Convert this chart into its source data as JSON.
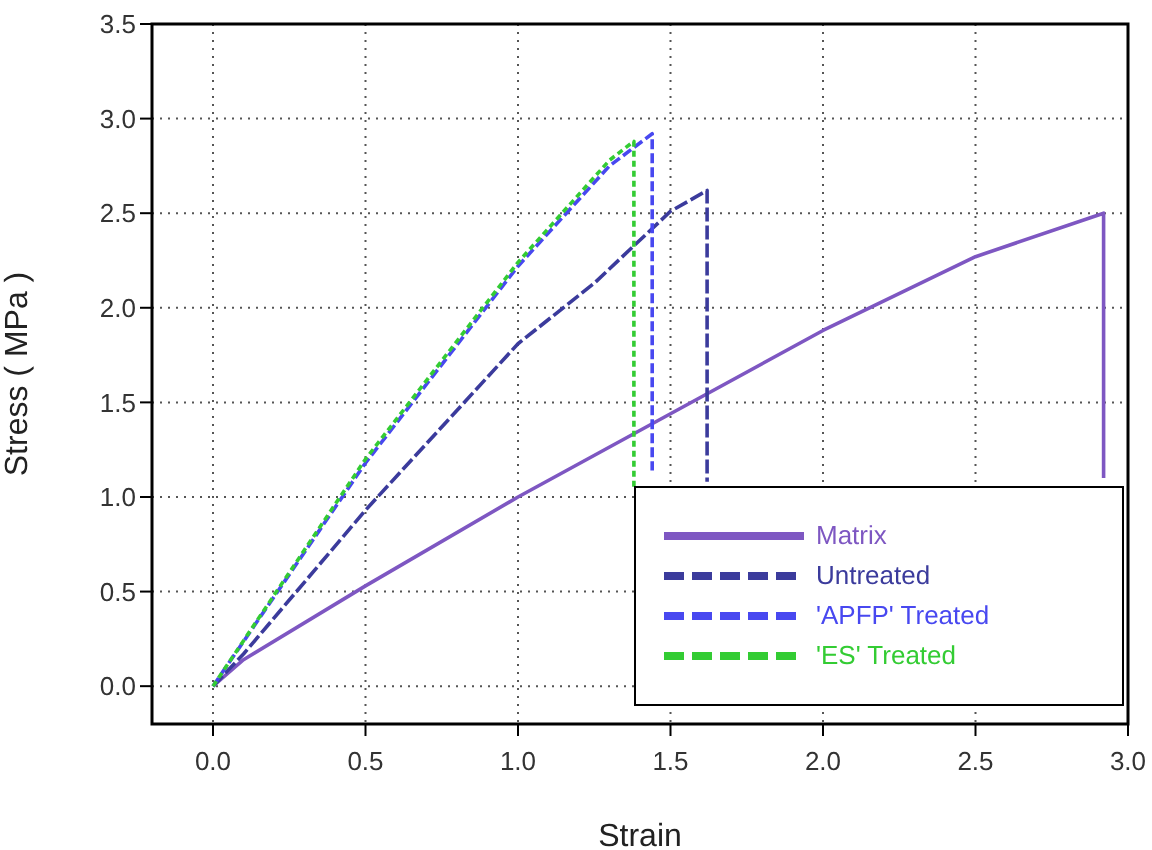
{
  "chart_data": {
    "type": "line",
    "xlabel": "Strain",
    "ylabel": "Stress ( MPa )",
    "xlim": [
      -0.2,
      3.0
    ],
    "xticks": [
      {
        "value": 0,
        "label": "0.0"
      },
      0.5,
      {
        "value": 1,
        "label": "1.0"
      },
      1.5,
      {
        "value": 2,
        "label": "2.0"
      },
      2.5,
      {
        "value": 3,
        "label": "3.0"
      }
    ],
    "ylim": [
      -0.2,
      3.5
    ],
    "yticks": [
      {
        "value": 0,
        "label": "0.0"
      },
      0.5,
      {
        "value": 1,
        "label": "1.0"
      },
      1.5,
      {
        "value": 2,
        "label": "2.0"
      },
      2.5,
      {
        "value": 3,
        "label": "3.0"
      },
      3.5
    ],
    "grid": true,
    "legend": "bottom right",
    "marker": "none",
    "series": [
      {
        "name": "Matrix",
        "color": "#7e57c2",
        "line_style": "solid",
        "x": [
          0,
          0.1,
          0.5,
          1.0,
          1.5,
          2.0,
          2.5,
          2.92,
          2.92
        ],
        "values": [
          0,
          0.14,
          0.53,
          1.0,
          1.44,
          1.88,
          2.27,
          2.5,
          1.1
        ]
      },
      {
        "name": "Untreated",
        "color": "#3b3b9c",
        "line_style": "dashed",
        "x": [
          0,
          0.1,
          0.5,
          1.0,
          1.25,
          1.5,
          1.62,
          1.62
        ],
        "values": [
          0,
          0.17,
          0.93,
          1.81,
          2.13,
          2.51,
          2.62,
          1.08
        ]
      },
      {
        "name": "'APFP' Treated",
        "color": "#4848f0",
        "line_style": "dashed",
        "x": [
          0,
          0.5,
          1.0,
          1.3,
          1.44,
          1.44
        ],
        "values": [
          0,
          1.18,
          2.22,
          2.75,
          2.92,
          1.14
        ]
      },
      {
        "name": "'ES' Treated",
        "color": "#33cc33",
        "line_style": "dashed",
        "x": [
          0,
          0.5,
          1.0,
          1.3,
          1.38,
          1.38
        ],
        "values": [
          0,
          1.2,
          2.24,
          2.78,
          2.88,
          1.05
        ]
      }
    ]
  }
}
